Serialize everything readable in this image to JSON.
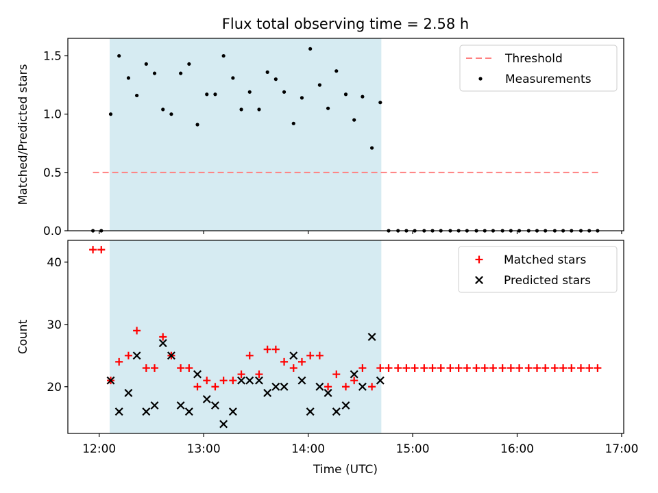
{
  "title": "Flux total observing time = 2.58 h",
  "colors": {
    "shade": "#add8e6",
    "threshold": "#ff8080",
    "matched": "#ff0000",
    "predicted": "#000000",
    "measurement": "#000000"
  },
  "chart_data": [
    {
      "type": "scatter",
      "ylabel": "Matched/Predicted stars",
      "xlim": [
        11.7,
        17.02
      ],
      "ylim": [
        0,
        1.65
      ],
      "yticks": [
        0.0,
        0.5,
        1.0,
        1.5
      ],
      "ytick_labels": [
        "0.0",
        "0.5",
        "1.0",
        "1.5"
      ],
      "shaded_interval": [
        12.1,
        14.7
      ],
      "legend_position": "upper right",
      "threshold": {
        "name": "Threshold",
        "value": 0.5,
        "x_range": [
          11.94,
          16.8
        ],
        "style": "dashed"
      },
      "series": [
        {
          "name": "Measurements",
          "marker": "dot",
          "x": [
            11.94,
            12.02,
            12.11,
            12.19,
            12.28,
            12.36,
            12.45,
            12.53,
            12.61,
            12.69,
            12.78,
            12.86,
            12.94,
            13.03,
            13.11,
            13.19,
            13.28,
            13.36,
            13.44,
            13.53,
            13.61,
            13.69,
            13.77,
            13.86,
            13.94,
            14.02,
            14.11,
            14.19,
            14.27,
            14.36,
            14.44,
            14.52,
            14.61,
            14.69,
            14.77,
            14.86,
            14.94,
            15.02,
            15.11,
            15.19,
            15.27,
            15.36,
            15.44,
            15.52,
            15.61,
            15.69,
            15.77,
            15.86,
            15.94,
            16.02,
            16.11,
            16.19,
            16.27,
            16.36,
            16.44,
            16.52,
            16.61,
            16.69,
            16.77
          ],
          "y": [
            0.0,
            0.0,
            1.0,
            1.5,
            1.31,
            1.16,
            1.43,
            1.35,
            1.04,
            1.0,
            1.35,
            1.43,
            0.91,
            1.17,
            1.17,
            1.5,
            1.31,
            1.04,
            1.19,
            1.04,
            1.36,
            1.3,
            1.19,
            0.92,
            1.14,
            1.56,
            1.25,
            1.05,
            1.37,
            1.17,
            0.95,
            1.15,
            0.71,
            1.1,
            0.0,
            0.0,
            0.0,
            0.0,
            0.0,
            0.0,
            0.0,
            0.0,
            0.0,
            0.0,
            0.0,
            0.0,
            0.0,
            0.0,
            0.0,
            0.0,
            0.0,
            0.0,
            0.0,
            0.0,
            0.0,
            0.0,
            0.0,
            0.0,
            0.0
          ]
        }
      ]
    },
    {
      "type": "scatter",
      "xlabel": "Time (UTC)",
      "ylabel": "Count",
      "xlim": [
        11.7,
        17.02
      ],
      "ylim": [
        12.5,
        43.5
      ],
      "xticks": [
        12,
        13,
        14,
        15,
        16,
        17
      ],
      "xtick_labels": [
        "12:00",
        "13:00",
        "14:00",
        "15:00",
        "16:00",
        "17:00"
      ],
      "yticks": [
        20,
        30,
        40
      ],
      "ytick_labels": [
        "20",
        "30",
        "40"
      ],
      "shaded_interval": [
        12.1,
        14.7
      ],
      "legend_position": "upper right",
      "series": [
        {
          "name": "Matched stars",
          "marker": "plus",
          "x": [
            11.94,
            12.02,
            12.11,
            12.19,
            12.28,
            12.36,
            12.45,
            12.53,
            12.61,
            12.69,
            12.78,
            12.86,
            12.94,
            13.03,
            13.11,
            13.19,
            13.28,
            13.36,
            13.44,
            13.53,
            13.61,
            13.69,
            13.77,
            13.86,
            13.94,
            14.02,
            14.11,
            14.19,
            14.27,
            14.36,
            14.44,
            14.52,
            14.61,
            14.69,
            14.77,
            14.86,
            14.94,
            15.02,
            15.11,
            15.19,
            15.27,
            15.36,
            15.44,
            15.52,
            15.61,
            15.69,
            15.77,
            15.86,
            15.94,
            16.02,
            16.11,
            16.19,
            16.27,
            16.36,
            16.44,
            16.52,
            16.61,
            16.69,
            16.77
          ],
          "y": [
            42,
            42,
            21,
            24,
            25,
            29,
            23,
            23,
            28,
            25,
            23,
            23,
            20,
            21,
            20,
            21,
            21,
            22,
            25,
            22,
            26,
            26,
            24,
            23,
            24,
            25,
            25,
            20,
            22,
            20,
            21,
            23,
            20,
            23,
            23,
            23,
            23,
            23,
            23,
            23,
            23,
            23,
            23,
            23,
            23,
            23,
            23,
            23,
            23,
            23,
            23,
            23,
            23,
            23,
            23,
            23,
            23,
            23,
            23
          ]
        },
        {
          "name": "Predicted stars",
          "marker": "x",
          "x": [
            12.11,
            12.19,
            12.28,
            12.36,
            12.45,
            12.53,
            12.61,
            12.69,
            12.78,
            12.86,
            12.94,
            13.03,
            13.11,
            13.19,
            13.28,
            13.36,
            13.44,
            13.53,
            13.61,
            13.69,
            13.77,
            13.86,
            13.94,
            14.02,
            14.11,
            14.19,
            14.27,
            14.36,
            14.44,
            14.52,
            14.61,
            14.69
          ],
          "y": [
            21,
            16,
            19,
            25,
            16,
            17,
            27,
            25,
            17,
            16,
            22,
            18,
            17,
            14,
            16,
            21,
            21,
            21,
            19,
            20,
            20,
            25,
            21,
            16,
            20,
            19,
            16,
            17,
            22,
            20,
            28,
            21
          ]
        }
      ]
    }
  ]
}
